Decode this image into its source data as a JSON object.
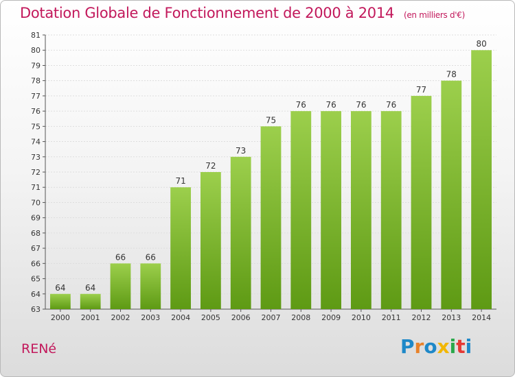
{
  "chart_data": {
    "type": "bar",
    "title": "Dotation Globale de Fonctionnement de 2000 à 2014",
    "subtitle": "(en milliers d'€)",
    "categories": [
      "2000",
      "2001",
      "2002",
      "2003",
      "2004",
      "2005",
      "2006",
      "2007",
      "2008",
      "2009",
      "2010",
      "2011",
      "2012",
      "2013",
      "2014"
    ],
    "values": [
      64,
      64,
      66,
      66,
      71,
      72,
      73,
      75,
      76,
      76,
      76,
      76,
      77,
      78,
      80
    ],
    "xlabel": "",
    "ylabel": "",
    "ylim": [
      63,
      81
    ],
    "yticks": [
      63,
      64,
      65,
      66,
      67,
      68,
      69,
      70,
      71,
      72,
      73,
      74,
      75,
      76,
      77,
      78,
      79,
      80,
      81
    ],
    "grid": true,
    "bar_color_top": "#9ccf4c",
    "bar_color_bottom": "#5e9a14"
  },
  "footer": {
    "city": "RENé",
    "logo_letters": [
      "P",
      "r",
      "o",
      "x",
      "i",
      "t",
      "i"
    ],
    "logo_colors": [
      "#1e88c8",
      "#e8822a",
      "#1e88c8",
      "#f2b705",
      "#2aa84a",
      "#e53935",
      "#1e88c8"
    ]
  },
  "colors": {
    "title": "#c2185b",
    "axis": "#555555",
    "grid": "#dddddd"
  }
}
